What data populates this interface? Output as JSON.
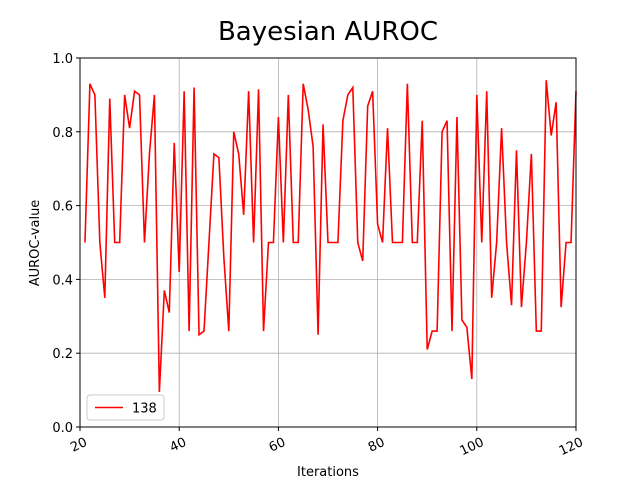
{
  "chart_data": {
    "type": "line",
    "title": "Bayesian AUROC",
    "xlabel": "Iterations",
    "ylabel": "AUROC-value",
    "x": [
      21,
      22,
      23,
      24,
      25,
      26,
      27,
      28,
      29,
      30,
      31,
      32,
      33,
      34,
      35,
      36,
      37,
      38,
      39,
      40,
      41,
      42,
      43,
      44,
      45,
      46,
      47,
      48,
      49,
      50,
      51,
      52,
      53,
      54,
      55,
      56,
      57,
      58,
      59,
      60,
      61,
      62,
      63,
      64,
      65,
      66,
      67,
      68,
      69,
      70,
      71,
      72,
      73,
      74,
      75,
      76,
      77,
      78,
      79,
      80,
      81,
      82,
      83,
      84,
      85,
      86,
      87,
      88,
      89,
      90,
      91,
      92,
      93,
      94,
      95,
      96,
      97,
      98,
      99,
      100,
      101,
      102,
      103,
      104,
      105,
      106,
      107,
      108,
      109,
      110,
      111,
      112,
      113,
      114,
      115,
      116,
      117,
      118,
      119,
      120
    ],
    "series": [
      {
        "name": "138",
        "color": "#ff0000",
        "values": [
          0.5,
          0.93,
          0.9,
          0.5,
          0.35,
          0.89,
          0.5,
          0.5,
          0.9,
          0.81,
          0.91,
          0.9,
          0.5,
          0.74,
          0.9,
          0.095,
          0.37,
          0.31,
          0.77,
          0.42,
          0.91,
          0.26,
          0.92,
          0.25,
          0.26,
          0.5,
          0.74,
          0.73,
          0.46,
          0.26,
          0.8,
          0.74,
          0.575,
          0.91,
          0.5,
          0.915,
          0.26,
          0.5,
          0.5,
          0.84,
          0.5,
          0.9,
          0.5,
          0.5,
          0.93,
          0.86,
          0.76,
          0.25,
          0.82,
          0.5,
          0.5,
          0.5,
          0.83,
          0.9,
          0.92,
          0.5,
          0.45,
          0.87,
          0.91,
          0.55,
          0.5,
          0.81,
          0.5,
          0.5,
          0.5,
          0.93,
          0.5,
          0.5,
          0.83,
          0.21,
          0.26,
          0.26,
          0.8,
          0.83,
          0.26,
          0.84,
          0.29,
          0.27,
          0.13,
          0.9,
          0.5,
          0.91,
          0.35,
          0.5,
          0.81,
          0.5,
          0.33,
          0.75,
          0.325,
          0.5,
          0.74,
          0.26,
          0.26,
          0.94,
          0.79,
          0.88,
          0.325,
          0.5,
          0.5,
          0.91
        ]
      }
    ],
    "xlim": [
      20,
      120
    ],
    "xticks": [
      20,
      40,
      60,
      80,
      100,
      120
    ],
    "ylim": [
      0.0,
      1.0
    ],
    "yticks": [
      {
        "value": 0,
        "label": "0.0"
      },
      0.2,
      0.4,
      0.6,
      0.8,
      {
        "value": 1,
        "label": "1.0"
      }
    ],
    "grid": true,
    "legend": "lower left"
  }
}
